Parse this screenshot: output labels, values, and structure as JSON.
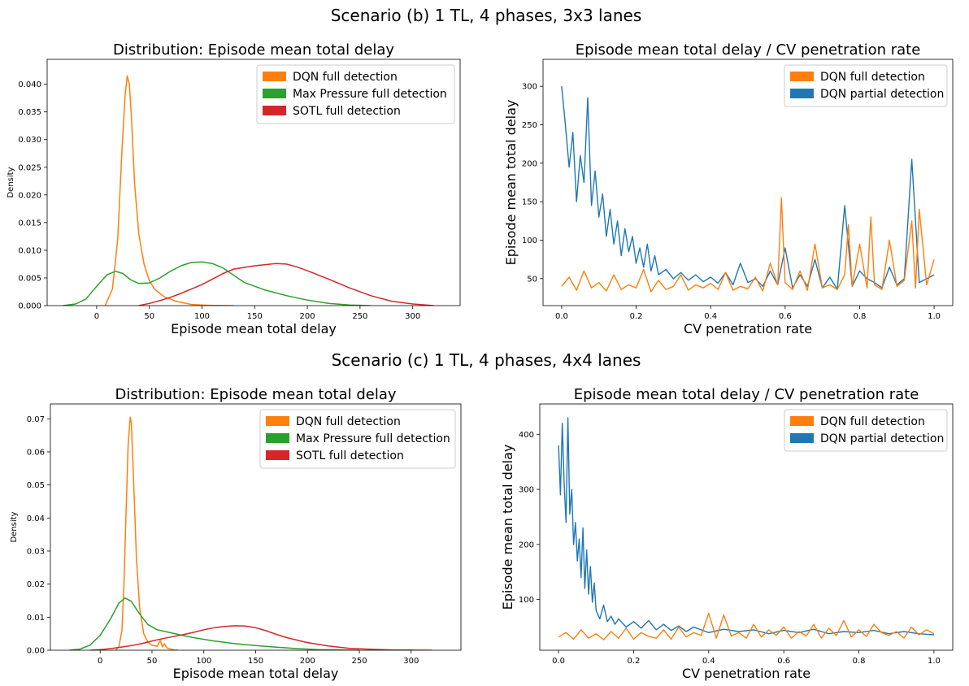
{
  "figure": {
    "suptitles": [
      "Scenario (b) 1 TL, 4 phases, 3x3 lanes",
      "Scenario (c) 1 TL, 4 phases, 4x4 lanes"
    ]
  },
  "colors": {
    "dqn_full": "#ff7f0e",
    "dqn_partial": "#1f77b4",
    "max_pressure": "#2ca02c",
    "sotl": "#d62728"
  },
  "chart_data": [
    {
      "type": "line",
      "title": "Distribution: Episode mean total delay",
      "xlabel": "Episode mean total delay",
      "ylabel": "Density",
      "xlim": [
        -47,
        345
      ],
      "ylim": [
        0,
        0.0445
      ],
      "xticks": [
        0,
        50,
        100,
        150,
        200,
        250,
        300
      ],
      "yticks": [
        0.0,
        0.005,
        0.01,
        0.015,
        0.02,
        0.025,
        0.03,
        0.035,
        0.04
      ],
      "ytick_labels": [
        "0.000",
        "0.005",
        "0.010",
        "0.015",
        "0.020",
        "0.025",
        "0.030",
        "0.035",
        "0.040"
      ],
      "legend_position": "upper right",
      "series": [
        {
          "name": "DQN full detection",
          "color": "#ff7f0e",
          "x": [
            8,
            15,
            20,
            24,
            27,
            29,
            31,
            33,
            36,
            40,
            45,
            50,
            55,
            60,
            65,
            70,
            75,
            80,
            85,
            90,
            100,
            110,
            120,
            130
          ],
          "y": [
            0.0,
            0.003,
            0.012,
            0.028,
            0.038,
            0.0415,
            0.04,
            0.034,
            0.022,
            0.013,
            0.0075,
            0.0045,
            0.003,
            0.0022,
            0.0015,
            0.0012,
            0.0008,
            0.0006,
            0.0004,
            0.0002,
            0.0001,
            5e-05,
            2e-05,
            0.0
          ]
        },
        {
          "name": "Max Pressure full detection",
          "color": "#2ca02c",
          "x": [
            -32,
            -20,
            -10,
            0,
            10,
            18,
            25,
            32,
            40,
            50,
            60,
            70,
            80,
            90,
            100,
            110,
            120,
            130,
            140,
            160,
            180,
            200,
            220,
            240,
            260
          ],
          "y": [
            0.0,
            0.0003,
            0.0012,
            0.0035,
            0.0056,
            0.0062,
            0.0058,
            0.0047,
            0.004,
            0.0041,
            0.005,
            0.0062,
            0.0072,
            0.0078,
            0.0079,
            0.0076,
            0.0068,
            0.0055,
            0.0042,
            0.0028,
            0.0018,
            0.001,
            0.0004,
            0.0001,
            0.0
          ]
        },
        {
          "name": "SOTL full detection",
          "color": "#d62728",
          "x": [
            40,
            50,
            60,
            70,
            80,
            90,
            100,
            110,
            120,
            130,
            140,
            150,
            160,
            170,
            180,
            190,
            200,
            220,
            240,
            260,
            280,
            300,
            320
          ],
          "y": [
            0.0,
            0.0004,
            0.0009,
            0.0015,
            0.0022,
            0.003,
            0.0038,
            0.0048,
            0.0058,
            0.0066,
            0.0069,
            0.0072,
            0.0074,
            0.0076,
            0.0075,
            0.007,
            0.0063,
            0.0048,
            0.0032,
            0.0018,
            0.0008,
            0.0003,
            0.0
          ]
        }
      ]
    },
    {
      "type": "line",
      "title": "Episode mean total delay / CV penetration rate",
      "xlabel": "CV penetration rate",
      "ylabel": "Episode mean total delay",
      "xlim": [
        -0.05,
        1.05
      ],
      "ylim": [
        15,
        335
      ],
      "xticks": [
        0.0,
        0.2,
        0.4,
        0.6,
        0.8,
        1.0
      ],
      "xtick_labels": [
        "0.0",
        "0.2",
        "0.4",
        "0.6",
        "0.8",
        "1.0"
      ],
      "yticks": [
        50,
        100,
        150,
        200,
        250,
        300
      ],
      "legend_position": "upper right",
      "series": [
        {
          "name": "DQN full detection",
          "color": "#ff7f0e",
          "x": [
            0,
            0.02,
            0.04,
            0.06,
            0.08,
            0.1,
            0.12,
            0.14,
            0.16,
            0.18,
            0.2,
            0.22,
            0.24,
            0.26,
            0.28,
            0.3,
            0.32,
            0.34,
            0.36,
            0.38,
            0.4,
            0.42,
            0.44,
            0.46,
            0.48,
            0.5,
            0.52,
            0.54,
            0.56,
            0.58,
            0.59,
            0.6,
            0.62,
            0.64,
            0.66,
            0.68,
            0.7,
            0.72,
            0.74,
            0.76,
            0.77,
            0.78,
            0.8,
            0.82,
            0.83,
            0.84,
            0.86,
            0.88,
            0.9,
            0.92,
            0.94,
            0.95,
            0.96,
            0.98,
            1.0
          ],
          "y": [
            40,
            52,
            35,
            60,
            38,
            45,
            34,
            55,
            36,
            42,
            38,
            62,
            33,
            48,
            36,
            40,
            55,
            35,
            42,
            38,
            44,
            36,
            58,
            35,
            40,
            37,
            52,
            34,
            70,
            42,
            155,
            45,
            36,
            60,
            35,
            95,
            38,
            42,
            36,
            55,
            120,
            40,
            95,
            38,
            130,
            42,
            36,
            100,
            40,
            48,
            125,
            38,
            140,
            42,
            75
          ]
        },
        {
          "name": "DQN partial detection",
          "color": "#1f77b4",
          "x": [
            0,
            0.01,
            0.02,
            0.03,
            0.04,
            0.05,
            0.06,
            0.07,
            0.08,
            0.09,
            0.1,
            0.11,
            0.12,
            0.13,
            0.14,
            0.15,
            0.16,
            0.17,
            0.18,
            0.19,
            0.2,
            0.21,
            0.22,
            0.23,
            0.24,
            0.25,
            0.26,
            0.28,
            0.3,
            0.32,
            0.34,
            0.36,
            0.38,
            0.4,
            0.42,
            0.44,
            0.46,
            0.48,
            0.5,
            0.52,
            0.54,
            0.56,
            0.58,
            0.6,
            0.62,
            0.64,
            0.66,
            0.68,
            0.7,
            0.72,
            0.74,
            0.76,
            0.78,
            0.8,
            0.82,
            0.84,
            0.86,
            0.88,
            0.9,
            0.92,
            0.94,
            0.96,
            0.98,
            1.0
          ],
          "y": [
            300,
            250,
            195,
            240,
            150,
            210,
            175,
            285,
            145,
            190,
            130,
            160,
            105,
            140,
            95,
            125,
            80,
            115,
            85,
            105,
            70,
            90,
            65,
            95,
            60,
            80,
            55,
            62,
            50,
            58,
            48,
            55,
            46,
            52,
            44,
            58,
            42,
            70,
            45,
            50,
            40,
            60,
            42,
            90,
            38,
            55,
            40,
            75,
            38,
            52,
            36,
            145,
            40,
            60,
            50,
            45,
            38,
            65,
            42,
            50,
            205,
            45,
            50,
            55
          ]
        }
      ]
    },
    {
      "type": "line",
      "title": "Distribution: Episode mean total delay",
      "xlabel": "Episode mean total delay",
      "ylabel": "Density",
      "xlim": [
        -48,
        348
      ],
      "ylim": [
        0,
        0.0745
      ],
      "xticks": [
        0,
        50,
        100,
        150,
        200,
        250,
        300
      ],
      "yticks": [
        0.0,
        0.01,
        0.02,
        0.03,
        0.04,
        0.05,
        0.06,
        0.07
      ],
      "ytick_labels": [
        "0.00",
        "0.01",
        "0.02",
        "0.03",
        "0.04",
        "0.05",
        "0.06",
        "0.07"
      ],
      "legend_position": "upper right",
      "series": [
        {
          "name": "DQN full detection",
          "color": "#ff7f0e",
          "x": [
            15,
            18,
            21,
            23,
            25,
            27,
            29,
            30,
            31,
            33,
            35,
            38,
            42,
            46,
            50,
            55,
            58,
            60,
            62,
            64,
            66,
            70,
            75
          ],
          "y": [
            0.0,
            0.001,
            0.006,
            0.02,
            0.042,
            0.062,
            0.0705,
            0.069,
            0.062,
            0.045,
            0.028,
            0.013,
            0.005,
            0.0025,
            0.0015,
            0.0012,
            0.003,
            0.001,
            0.002,
            0.0008,
            0.0005,
            0.0002,
            0.0
          ]
        },
        {
          "name": "Max Pressure full detection",
          "color": "#2ca02c",
          "x": [
            -30,
            -20,
            -10,
            0,
            10,
            18,
            24,
            30,
            38,
            46,
            55,
            65,
            75,
            90,
            110,
            130,
            150,
            170,
            190,
            210,
            230,
            250
          ],
          "y": [
            0.0,
            0.0003,
            0.0015,
            0.0045,
            0.0095,
            0.0142,
            0.0158,
            0.0148,
            0.011,
            0.0078,
            0.0062,
            0.0055,
            0.0048,
            0.0038,
            0.0028,
            0.002,
            0.0014,
            0.0009,
            0.0005,
            0.0002,
            0.0001,
            0.0
          ]
        },
        {
          "name": "SOTL full detection",
          "color": "#d62728",
          "x": [
            -10,
            0,
            10,
            20,
            30,
            40,
            50,
            60,
            70,
            80,
            90,
            100,
            110,
            120,
            130,
            140,
            150,
            160,
            170,
            180,
            200,
            220,
            240,
            260,
            280,
            300,
            320
          ],
          "y": [
            0.0,
            0.0002,
            0.0005,
            0.0009,
            0.0014,
            0.002,
            0.0028,
            0.0035,
            0.0041,
            0.0047,
            0.0054,
            0.0062,
            0.0068,
            0.0072,
            0.0074,
            0.0073,
            0.0068,
            0.0059,
            0.0048,
            0.0038,
            0.0023,
            0.0013,
            0.0006,
            0.0003,
            0.0001,
            4e-05,
            0.0
          ]
        }
      ]
    },
    {
      "type": "line",
      "title": "Episode mean total delay / CV penetration rate",
      "xlabel": "CV penetration rate",
      "ylabel": "Episode mean total delay",
      "xlim": [
        -0.05,
        1.05
      ],
      "ylim": [
        8,
        455
      ],
      "xticks": [
        0.0,
        0.2,
        0.4,
        0.6,
        0.8,
        1.0
      ],
      "xtick_labels": [
        "0.0",
        "0.2",
        "0.4",
        "0.6",
        "0.8",
        "1.0"
      ],
      "yticks": [
        100,
        200,
        300,
        400
      ],
      "legend_position": "upper right",
      "series": [
        {
          "name": "DQN full detection",
          "color": "#ff7f0e",
          "x": [
            0,
            0.02,
            0.04,
            0.06,
            0.08,
            0.1,
            0.12,
            0.14,
            0.16,
            0.18,
            0.2,
            0.22,
            0.24,
            0.26,
            0.28,
            0.3,
            0.32,
            0.34,
            0.36,
            0.38,
            0.4,
            0.42,
            0.44,
            0.46,
            0.48,
            0.5,
            0.52,
            0.54,
            0.56,
            0.58,
            0.6,
            0.62,
            0.64,
            0.66,
            0.68,
            0.7,
            0.72,
            0.74,
            0.76,
            0.78,
            0.8,
            0.82,
            0.84,
            0.86,
            0.88,
            0.9,
            0.92,
            0.94,
            0.96,
            0.98,
            1.0
          ],
          "y": [
            32,
            40,
            28,
            45,
            30,
            38,
            27,
            42,
            30,
            48,
            28,
            40,
            33,
            30,
            45,
            28,
            50,
            32,
            40,
            35,
            75,
            30,
            72,
            34,
            40,
            30,
            55,
            32,
            45,
            35,
            50,
            30,
            42,
            34,
            55,
            30,
            48,
            35,
            62,
            32,
            45,
            33,
            55,
            40,
            35,
            42,
            30,
            50,
            36,
            45,
            38
          ]
        },
        {
          "name": "DQN partial detection",
          "color": "#1f77b4",
          "x": [
            0,
            0.005,
            0.01,
            0.015,
            0.02,
            0.025,
            0.03,
            0.035,
            0.04,
            0.045,
            0.05,
            0.055,
            0.06,
            0.065,
            0.07,
            0.075,
            0.08,
            0.085,
            0.09,
            0.095,
            0.1,
            0.11,
            0.12,
            0.13,
            0.14,
            0.15,
            0.16,
            0.18,
            0.2,
            0.22,
            0.24,
            0.26,
            0.28,
            0.3,
            0.32,
            0.34,
            0.36,
            0.4,
            0.44,
            0.48,
            0.52,
            0.56,
            0.6,
            0.64,
            0.68,
            0.72,
            0.76,
            0.8,
            0.84,
            0.88,
            0.92,
            0.96,
            1.0
          ],
          "y": [
            380,
            290,
            420,
            310,
            240,
            430,
            255,
            300,
            200,
            240,
            170,
            210,
            140,
            230,
            120,
            190,
            110,
            160,
            95,
            130,
            80,
            65,
            90,
            60,
            70,
            55,
            65,
            50,
            60,
            48,
            62,
            45,
            55,
            44,
            52,
            42,
            50,
            40,
            46,
            42,
            45,
            38,
            44,
            40,
            46,
            38,
            42,
            40,
            44,
            38,
            42,
            38,
            36
          ]
        }
      ]
    }
  ]
}
